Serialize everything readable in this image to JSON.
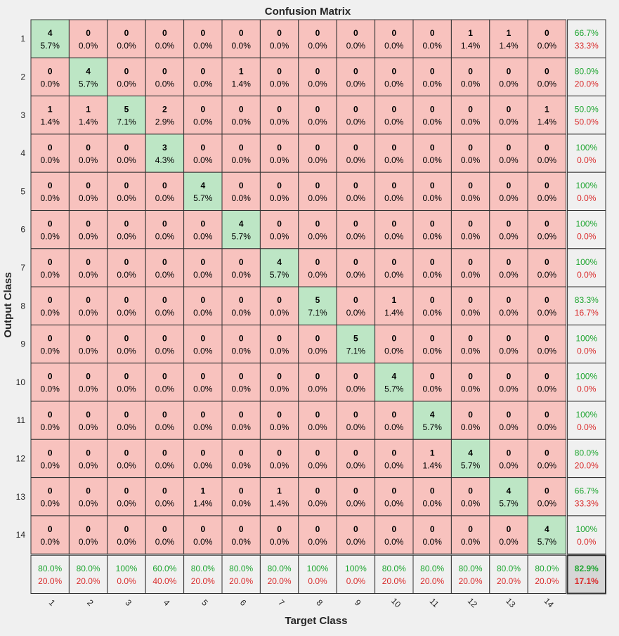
{
  "chart_data": {
    "type": "heatmap",
    "title": "Confusion Matrix",
    "xlabel": "Target Class",
    "ylabel": "Output Class",
    "classes": [
      "1",
      "2",
      "3",
      "4",
      "5",
      "6",
      "7",
      "8",
      "9",
      "10",
      "11",
      "12",
      "13",
      "14"
    ],
    "counts": [
      [
        4,
        0,
        0,
        0,
        0,
        0,
        0,
        0,
        0,
        0,
        0,
        1,
        1,
        0
      ],
      [
        0,
        4,
        0,
        0,
        0,
        1,
        0,
        0,
        0,
        0,
        0,
        0,
        0,
        0
      ],
      [
        1,
        1,
        5,
        2,
        0,
        0,
        0,
        0,
        0,
        0,
        0,
        0,
        0,
        1
      ],
      [
        0,
        0,
        0,
        3,
        0,
        0,
        0,
        0,
        0,
        0,
        0,
        0,
        0,
        0
      ],
      [
        0,
        0,
        0,
        0,
        4,
        0,
        0,
        0,
        0,
        0,
        0,
        0,
        0,
        0
      ],
      [
        0,
        0,
        0,
        0,
        0,
        4,
        0,
        0,
        0,
        0,
        0,
        0,
        0,
        0
      ],
      [
        0,
        0,
        0,
        0,
        0,
        0,
        4,
        0,
        0,
        0,
        0,
        0,
        0,
        0
      ],
      [
        0,
        0,
        0,
        0,
        0,
        0,
        0,
        5,
        0,
        1,
        0,
        0,
        0,
        0
      ],
      [
        0,
        0,
        0,
        0,
        0,
        0,
        0,
        0,
        5,
        0,
        0,
        0,
        0,
        0
      ],
      [
        0,
        0,
        0,
        0,
        0,
        0,
        0,
        0,
        0,
        4,
        0,
        0,
        0,
        0
      ],
      [
        0,
        0,
        0,
        0,
        0,
        0,
        0,
        0,
        0,
        0,
        4,
        0,
        0,
        0
      ],
      [
        0,
        0,
        0,
        0,
        0,
        0,
        0,
        0,
        0,
        0,
        1,
        4,
        0,
        0
      ],
      [
        0,
        0,
        0,
        0,
        1,
        0,
        1,
        0,
        0,
        0,
        0,
        0,
        4,
        0
      ],
      [
        0,
        0,
        0,
        0,
        0,
        0,
        0,
        0,
        0,
        0,
        0,
        0,
        0,
        4
      ]
    ],
    "percents": [
      [
        "5.7%",
        "0.0%",
        "0.0%",
        "0.0%",
        "0.0%",
        "0.0%",
        "0.0%",
        "0.0%",
        "0.0%",
        "0.0%",
        "0.0%",
        "1.4%",
        "1.4%",
        "0.0%"
      ],
      [
        "0.0%",
        "5.7%",
        "0.0%",
        "0.0%",
        "0.0%",
        "1.4%",
        "0.0%",
        "0.0%",
        "0.0%",
        "0.0%",
        "0.0%",
        "0.0%",
        "0.0%",
        "0.0%"
      ],
      [
        "1.4%",
        "1.4%",
        "7.1%",
        "2.9%",
        "0.0%",
        "0.0%",
        "0.0%",
        "0.0%",
        "0.0%",
        "0.0%",
        "0.0%",
        "0.0%",
        "0.0%",
        "1.4%"
      ],
      [
        "0.0%",
        "0.0%",
        "0.0%",
        "4.3%",
        "0.0%",
        "0.0%",
        "0.0%",
        "0.0%",
        "0.0%",
        "0.0%",
        "0.0%",
        "0.0%",
        "0.0%",
        "0.0%"
      ],
      [
        "0.0%",
        "0.0%",
        "0.0%",
        "0.0%",
        "5.7%",
        "0.0%",
        "0.0%",
        "0.0%",
        "0.0%",
        "0.0%",
        "0.0%",
        "0.0%",
        "0.0%",
        "0.0%"
      ],
      [
        "0.0%",
        "0.0%",
        "0.0%",
        "0.0%",
        "0.0%",
        "5.7%",
        "0.0%",
        "0.0%",
        "0.0%",
        "0.0%",
        "0.0%",
        "0.0%",
        "0.0%",
        "0.0%"
      ],
      [
        "0.0%",
        "0.0%",
        "0.0%",
        "0.0%",
        "0.0%",
        "0.0%",
        "5.7%",
        "0.0%",
        "0.0%",
        "0.0%",
        "0.0%",
        "0.0%",
        "0.0%",
        "0.0%"
      ],
      [
        "0.0%",
        "0.0%",
        "0.0%",
        "0.0%",
        "0.0%",
        "0.0%",
        "0.0%",
        "7.1%",
        "0.0%",
        "1.4%",
        "0.0%",
        "0.0%",
        "0.0%",
        "0.0%"
      ],
      [
        "0.0%",
        "0.0%",
        "0.0%",
        "0.0%",
        "0.0%",
        "0.0%",
        "0.0%",
        "0.0%",
        "7.1%",
        "0.0%",
        "0.0%",
        "0.0%",
        "0.0%",
        "0.0%"
      ],
      [
        "0.0%",
        "0.0%",
        "0.0%",
        "0.0%",
        "0.0%",
        "0.0%",
        "0.0%",
        "0.0%",
        "0.0%",
        "5.7%",
        "0.0%",
        "0.0%",
        "0.0%",
        "0.0%"
      ],
      [
        "0.0%",
        "0.0%",
        "0.0%",
        "0.0%",
        "0.0%",
        "0.0%",
        "0.0%",
        "0.0%",
        "0.0%",
        "0.0%",
        "5.7%",
        "0.0%",
        "0.0%",
        "0.0%"
      ],
      [
        "0.0%",
        "0.0%",
        "0.0%",
        "0.0%",
        "0.0%",
        "0.0%",
        "0.0%",
        "0.0%",
        "0.0%",
        "0.0%",
        "1.4%",
        "5.7%",
        "0.0%",
        "0.0%"
      ],
      [
        "0.0%",
        "0.0%",
        "0.0%",
        "0.0%",
        "1.4%",
        "0.0%",
        "1.4%",
        "0.0%",
        "0.0%",
        "0.0%",
        "0.0%",
        "0.0%",
        "5.7%",
        "0.0%"
      ],
      [
        "0.0%",
        "0.0%",
        "0.0%",
        "0.0%",
        "0.0%",
        "0.0%",
        "0.0%",
        "0.0%",
        "0.0%",
        "0.0%",
        "0.0%",
        "0.0%",
        "0.0%",
        "5.7%"
      ]
    ],
    "row_summary": [
      [
        "66.7%",
        "33.3%"
      ],
      [
        "80.0%",
        "20.0%"
      ],
      [
        "50.0%",
        "50.0%"
      ],
      [
        "100%",
        "0.0%"
      ],
      [
        "100%",
        "0.0%"
      ],
      [
        "100%",
        "0.0%"
      ],
      [
        "100%",
        "0.0%"
      ],
      [
        "83.3%",
        "16.7%"
      ],
      [
        "100%",
        "0.0%"
      ],
      [
        "100%",
        "0.0%"
      ],
      [
        "100%",
        "0.0%"
      ],
      [
        "80.0%",
        "20.0%"
      ],
      [
        "66.7%",
        "33.3%"
      ],
      [
        "100%",
        "0.0%"
      ]
    ],
    "col_summary": [
      [
        "80.0%",
        "20.0%"
      ],
      [
        "80.0%",
        "20.0%"
      ],
      [
        "100%",
        "0.0%"
      ],
      [
        "60.0%",
        "40.0%"
      ],
      [
        "80.0%",
        "20.0%"
      ],
      [
        "80.0%",
        "20.0%"
      ],
      [
        "80.0%",
        "20.0%"
      ],
      [
        "100%",
        "0.0%"
      ],
      [
        "100%",
        "0.0%"
      ],
      [
        "80.0%",
        "20.0%"
      ],
      [
        "80.0%",
        "20.0%"
      ],
      [
        "80.0%",
        "20.0%"
      ],
      [
        "80.0%",
        "20.0%"
      ],
      [
        "80.0%",
        "20.0%"
      ]
    ],
    "overall": [
      "82.9%",
      "17.1%"
    ],
    "colors": {
      "correct": "#bde6c5",
      "incorrect": "#f8c2be",
      "summary": "#f0f0f0",
      "overall": "#d6d6d6",
      "good_text": "#1ea530",
      "bad_text": "#d92b2b"
    }
  }
}
